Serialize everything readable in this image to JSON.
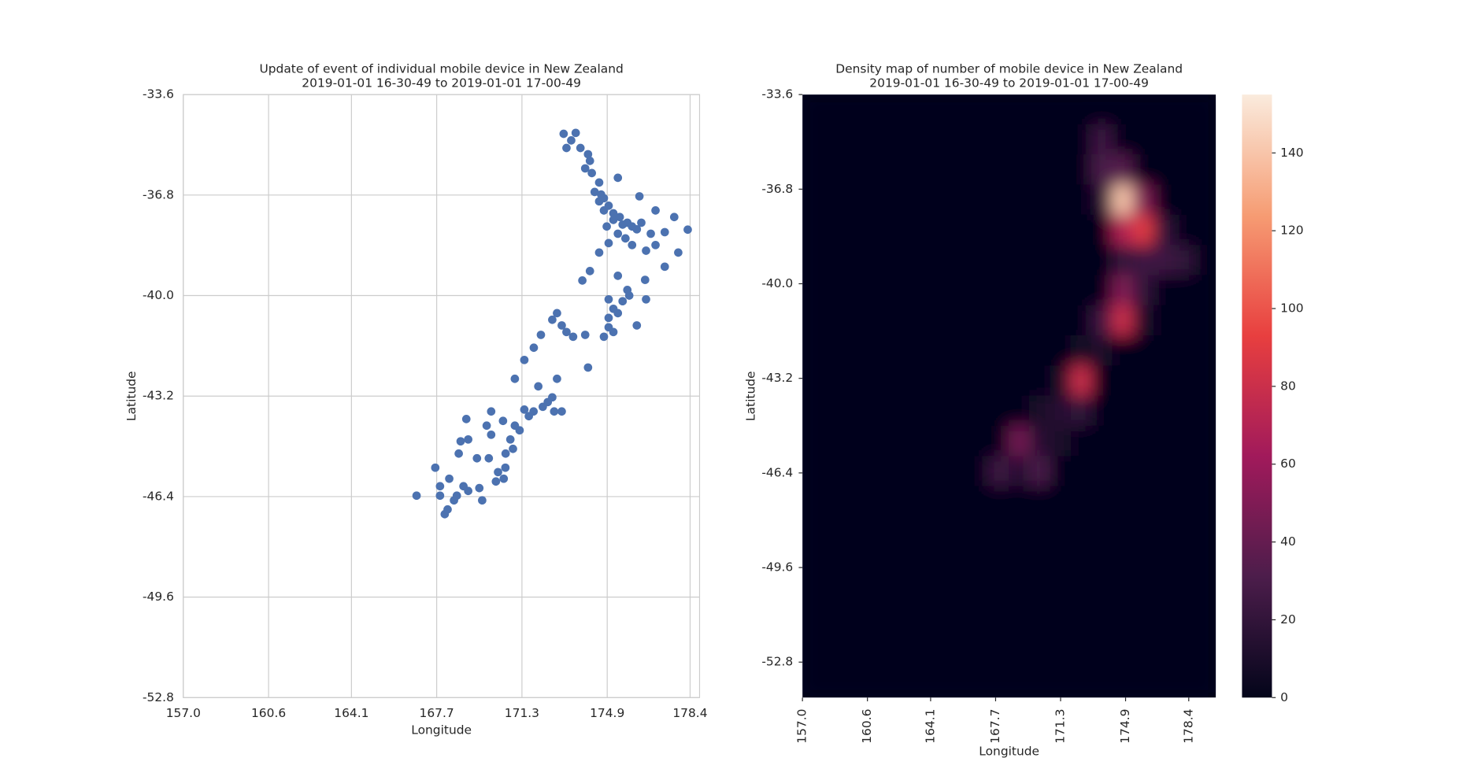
{
  "chart_data": [
    {
      "type": "scatter",
      "title": "Update of event of individual mobile device in New Zealand",
      "subtitle": "2019-01-01 16-30-49 to 2019-01-01 17-00-49",
      "xlabel": "Longitude",
      "ylabel": "Latitude",
      "color": "#4c72b0",
      "grid": true,
      "xlim": [
        157.0,
        178.8
      ],
      "ylim": [
        -52.8,
        -33.6
      ],
      "xticks": [
        {
          "value": 157.0,
          "label": "157.0"
        },
        160.6,
        164.1,
        167.7,
        171.3,
        174.9,
        178.4
      ],
      "yticks": [
        -33.6,
        -36.8,
        {
          "value": -40.0,
          "label": "-40.0"
        },
        -43.2,
        -46.4,
        -49.6,
        -52.8
      ],
      "x": [
        173.06,
        173.38,
        173.77,
        174.09,
        173.97,
        174.25,
        174.56,
        174.37,
        174.56,
        174.76,
        175.16,
        175.55,
        176.15,
        176.74,
        177.33,
        177.73,
        178.3,
        177.9,
        177.33,
        176.5,
        175.75,
        174.96,
        175.35,
        174.96,
        174.76,
        176.15,
        176.54,
        175.35,
        174.56,
        174.96,
        174.17,
        173.85,
        175.35,
        176.26,
        176.94,
        172.78,
        173.18,
        173.97,
        172.58,
        172.1,
        171.8,
        171.4,
        171.0,
        171.99,
        172.78,
        174.09,
        172.58,
        172.18,
        171.59,
        171.2,
        170.92,
        170.6,
        170.2,
        169.62,
        168.83,
        168.43,
        168.04,
        167.84,
        167.64,
        166.85,
        168.63,
        169.03,
        168.95,
        170.0,
        170.5,
        169.81,
        169.4,
        170.0,
        171.0,
        172.98,
        174.64,
        174.76,
        174.96,
        175.16,
        175.43,
        175.75,
        175.95,
        176.34,
        174.88,
        175.35,
        175.67,
        175.95,
        176.54,
        176.94,
        174.17,
        173.57,
        173.18,
        175.16,
        175.55,
        175.83,
        174.96,
        175.16,
        172.98,
        173.46,
        171.79,
        171.4,
        172.39,
        172.66,
        170.61,
        170.81,
        168.23,
        168.55,
        167.84,
        169.03,
        169.5,
        170.29,
        170.53,
        169.9,
        168.71,
        168.16
      ],
      "y": [
        -34.85,
        -35.06,
        -35.3,
        -35.5,
        -35.95,
        -36.1,
        -36.4,
        -36.7,
        -37.0,
        -37.29,
        -37.59,
        -37.74,
        -37.89,
        -38.03,
        -37.98,
        -37.5,
        -37.9,
        -38.63,
        -39.08,
        -39.5,
        -39.82,
        -40.12,
        -40.56,
        -41.01,
        -41.31,
        -40.95,
        -40.12,
        -39.37,
        -38.63,
        -38.33,
        -39.22,
        -39.52,
        -36.25,
        -36.84,
        -37.29,
        -40.56,
        -41.16,
        -41.25,
        -40.77,
        -41.25,
        -41.66,
        -42.05,
        -42.65,
        -42.89,
        -42.65,
        -42.29,
        -43.24,
        -43.54,
        -43.84,
        -44.29,
        -44.88,
        -45.48,
        -45.92,
        -46.52,
        -46.07,
        -46.52,
        -46.96,
        -46.07,
        -45.48,
        -46.37,
        -45.03,
        -44.58,
        -43.93,
        -43.69,
        -43.99,
        -44.14,
        -45.18,
        -44.43,
        -44.14,
        -43.69,
        -36.78,
        -36.9,
        -37.14,
        -37.38,
        -37.5,
        -37.68,
        -37.8,
        -37.68,
        -37.8,
        -38.03,
        -38.18,
        -38.39,
        -38.57,
        -38.39,
        -35.71,
        -34.82,
        -35.3,
        -40.42,
        -40.18,
        -40.0,
        -40.71,
        -41.16,
        -40.95,
        -41.31,
        -43.69,
        -43.63,
        -43.39,
        -43.69,
        -45.03,
        -44.58,
        -45.83,
        -46.37,
        -46.37,
        -46.22,
        -46.13,
        -45.62,
        -45.83,
        -45.18,
        -44.64,
        -46.81
      ]
    },
    {
      "type": "heatmap",
      "title": "Density map of number of mobile device in New Zealand",
      "subtitle": "2019-01-01 16-30-49 to 2019-01-01 17-00-49",
      "xlabel": "Longitude",
      "ylabel": "Latitude",
      "xlim": [
        157.0,
        179.9
      ],
      "ylim": [
        -54.0,
        -33.6
      ],
      "xticks": [
        {
          "value": 157.0,
          "label": "157.0"
        },
        160.6,
        164.1,
        167.7,
        171.3,
        174.9,
        178.4
      ],
      "yticks": [
        -33.6,
        -36.8,
        {
          "value": -40.0,
          "label": "-40.0"
        },
        -43.2,
        -46.4,
        -49.6,
        -52.8
      ],
      "colorbar": {
        "lim": [
          0,
          155
        ],
        "ticks": [
          0,
          20,
          40,
          60,
          80,
          100,
          120,
          140
        ]
      },
      "values": [
        [
          0,
          0,
          0,
          0,
          0,
          0,
          0,
          0,
          0,
          0,
          0,
          0,
          0,
          0,
          0,
          0,
          0,
          0,
          0,
          0
        ],
        [
          0,
          0,
          0,
          0,
          0,
          0,
          0,
          0,
          0,
          0,
          0,
          0,
          0,
          0,
          25,
          0,
          0,
          0,
          0,
          0
        ],
        [
          0,
          0,
          0,
          0,
          0,
          0,
          0,
          0,
          0,
          0,
          0,
          0,
          0,
          0,
          30,
          35,
          0,
          0,
          0,
          0
        ],
        [
          0,
          0,
          0,
          0,
          0,
          0,
          0,
          0,
          0,
          0,
          0,
          0,
          0,
          0,
          15,
          140,
          50,
          0,
          0,
          0
        ],
        [
          0,
          0,
          0,
          0,
          0,
          0,
          0,
          0,
          0,
          0,
          0,
          0,
          0,
          0,
          0,
          70,
          90,
          20,
          0,
          0
        ],
        [
          0,
          0,
          0,
          0,
          0,
          0,
          0,
          0,
          0,
          0,
          0,
          0,
          0,
          0,
          0,
          20,
          25,
          25,
          20,
          0
        ],
        [
          0,
          0,
          0,
          0,
          0,
          0,
          0,
          0,
          0,
          0,
          0,
          0,
          0,
          0,
          0,
          50,
          20,
          0,
          0,
          0
        ],
        [
          0,
          0,
          0,
          0,
          0,
          0,
          0,
          0,
          0,
          0,
          0,
          0,
          0,
          0,
          25,
          80,
          10,
          0,
          0,
          0
        ],
        [
          0,
          0,
          0,
          0,
          0,
          0,
          0,
          0,
          0,
          0,
          0,
          0,
          0,
          8,
          10,
          0,
          0,
          0,
          0,
          0
        ],
        [
          0,
          0,
          0,
          0,
          0,
          0,
          0,
          0,
          0,
          0,
          0,
          0,
          8,
          80,
          0,
          0,
          0,
          0,
          0,
          0
        ],
        [
          0,
          0,
          0,
          0,
          0,
          0,
          0,
          0,
          0,
          0,
          0,
          10,
          15,
          20,
          0,
          0,
          0,
          0,
          0,
          0
        ],
        [
          0,
          0,
          0,
          0,
          0,
          0,
          0,
          0,
          0,
          0,
          45,
          15,
          10,
          0,
          0,
          0,
          0,
          0,
          0,
          0
        ],
        [
          0,
          0,
          0,
          0,
          0,
          0,
          0,
          0,
          0,
          25,
          15,
          30,
          0,
          0,
          0,
          0,
          0,
          0,
          0,
          0
        ],
        [
          0,
          0,
          0,
          0,
          0,
          0,
          0,
          0,
          0,
          0,
          0,
          0,
          0,
          0,
          0,
          0,
          0,
          0,
          0,
          0
        ],
        [
          0,
          0,
          0,
          0,
          0,
          0,
          0,
          0,
          0,
          0,
          0,
          0,
          0,
          0,
          0,
          0,
          0,
          0,
          0,
          0
        ],
        [
          0,
          0,
          0,
          0,
          0,
          0,
          0,
          0,
          0,
          0,
          0,
          0,
          0,
          0,
          0,
          0,
          0,
          0,
          0,
          0
        ],
        [
          0,
          0,
          0,
          0,
          0,
          0,
          0,
          0,
          0,
          0,
          0,
          0,
          0,
          0,
          0,
          0,
          0,
          0,
          0,
          0
        ],
        [
          0,
          0,
          0,
          0,
          0,
          0,
          0,
          0,
          0,
          0,
          0,
          0,
          0,
          0,
          0,
          0,
          0,
          0,
          0,
          0
        ],
        [
          0,
          0,
          0,
          0,
          0,
          0,
          0,
          0,
          0,
          0,
          0,
          0,
          0,
          0,
          0,
          0,
          0,
          0,
          0,
          0
        ],
        [
          0,
          0,
          0,
          0,
          0,
          0,
          0,
          0,
          0,
          0,
          0,
          0,
          0,
          0,
          0,
          0,
          0,
          0,
          0,
          0
        ]
      ]
    }
  ]
}
